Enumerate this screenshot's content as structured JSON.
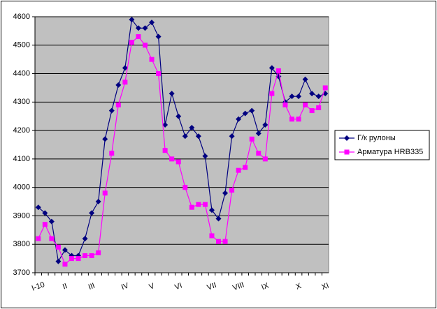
{
  "chart_data": {
    "type": "line",
    "categories": [
      "I-10",
      null,
      null,
      null,
      "II",
      null,
      null,
      null,
      "III",
      null,
      null,
      null,
      null,
      "IV",
      null,
      null,
      null,
      "V",
      null,
      null,
      null,
      "VI",
      null,
      null,
      null,
      null,
      "VII",
      null,
      null,
      null,
      "VIII",
      null,
      null,
      null,
      "IX",
      null,
      null,
      null,
      null,
      "X",
      null,
      null,
      null,
      "XI"
    ],
    "series": [
      {
        "name": "Г/к рулоны",
        "color": "#000080",
        "marker": "diamond",
        "values": [
          3930,
          3910,
          3880,
          3740,
          3780,
          3760,
          3760,
          3820,
          3910,
          3950,
          4170,
          4270,
          4360,
          4420,
          4590,
          4560,
          4560,
          4580,
          4530,
          4220,
          4330,
          4250,
          4180,
          4210,
          4180,
          4110,
          3920,
          3890,
          3980,
          4180,
          4240,
          4260,
          4270,
          4190,
          4220,
          4420,
          4390,
          4300,
          4320,
          4320,
          4380,
          4330,
          4320,
          4330
        ]
      },
      {
        "name": "Арматура HRB335",
        "color": "#ff00ff",
        "marker": "square",
        "values": [
          3820,
          3870,
          3820,
          3790,
          3730,
          3750,
          3750,
          3760,
          3760,
          3770,
          3980,
          4120,
          4290,
          4370,
          4510,
          4530,
          4500,
          4450,
          4400,
          4130,
          4100,
          4090,
          4000,
          3930,
          3940,
          3940,
          3830,
          3810,
          3810,
          3990,
          4060,
          4070,
          4170,
          4120,
          4100,
          4330,
          4410,
          4290,
          4240,
          4240,
          4290,
          4270,
          4280,
          4350
        ]
      }
    ],
    "ylim": [
      3700,
      4600
    ],
    "yticks": [
      3700,
      3800,
      3900,
      4000,
      4100,
      4200,
      4300,
      4400,
      4500,
      4600
    ],
    "grid": true,
    "legend": "right",
    "plot_background": "#c0c0c0"
  }
}
